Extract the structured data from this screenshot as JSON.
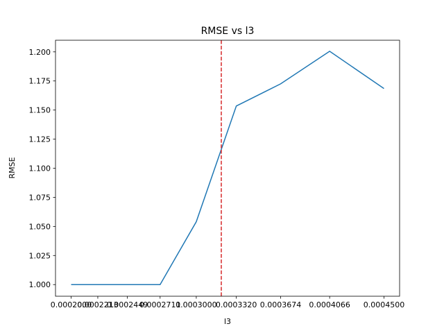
{
  "chart_data": {
    "type": "line",
    "title": "RMSE vs l3",
    "xlabel": "l3",
    "ylabel": "RMSE",
    "x": [
      0.0002,
      0.0002213,
      0.0002449,
      0.0002711,
      0.0003,
      0.000332,
      0.0003674,
      0.0004066,
      0.00045
    ],
    "x_tick_labels": [
      "0.0002000",
      "0.0002213",
      "0.0002449",
      "0.0002711",
      "0.0003000",
      "0.0003320",
      "0.0003674",
      "0.0004066",
      "0.0004500"
    ],
    "y": [
      1.0,
      1.0,
      1.0,
      1.0,
      1.054,
      1.1535,
      1.1725,
      1.2005,
      1.1685
    ],
    "y_ticks": [
      1.0,
      1.025,
      1.05,
      1.075,
      1.1,
      1.125,
      1.15,
      1.175,
      1.2
    ],
    "y_tick_labels": [
      "1.000",
      "1.025",
      "1.050",
      "1.075",
      "1.100",
      "1.125",
      "1.150",
      "1.175",
      "1.200"
    ],
    "ylim": [
      0.99,
      1.21
    ],
    "vline_x": 0.00032,
    "line_color": "#1f77b4",
    "vline_color": "#d62728",
    "grid": false
  }
}
